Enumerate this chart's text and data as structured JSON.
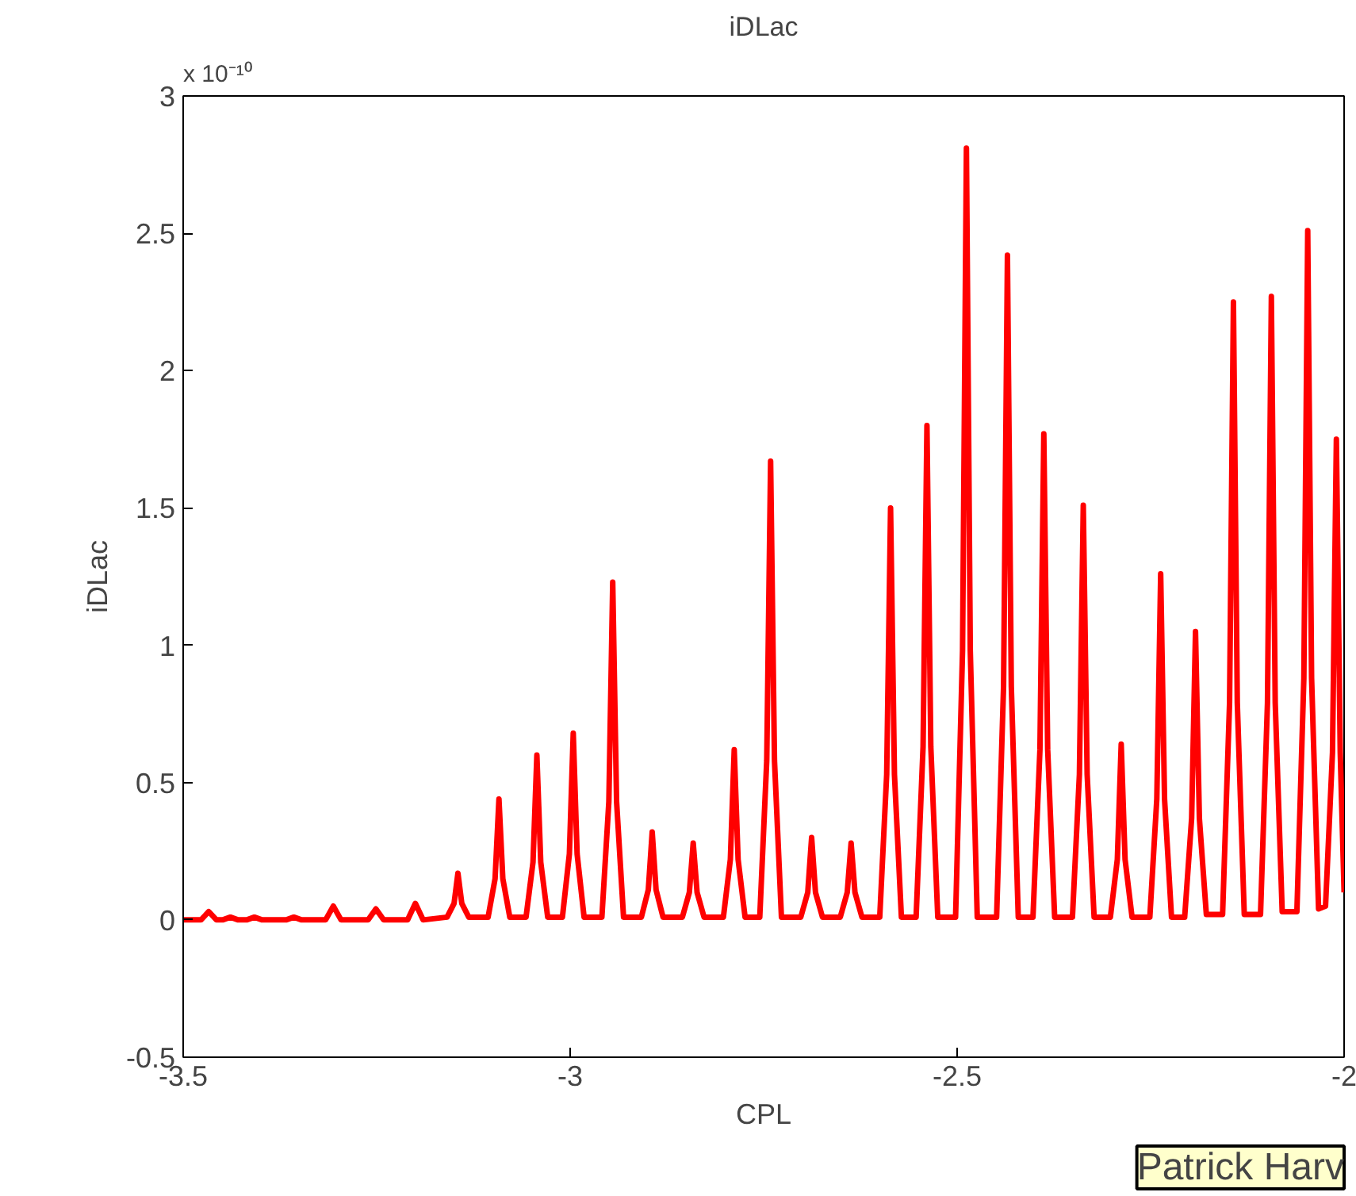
{
  "chart_data": {
    "type": "line",
    "title": "iDLac",
    "xlabel": "CPL",
    "ylabel": "iDLac",
    "annotations": [
      "x 10⁻¹⁰",
      "Patrick Harv"
    ],
    "xlim": [
      -3.5,
      -2
    ],
    "xticks": [
      -3.5,
      -3,
      -2.5,
      -2
    ],
    "ylim": [
      -0.5,
      3
    ],
    "yticks": [
      -0.5,
      0,
      0.5,
      1,
      1.5,
      2,
      2.5,
      3
    ],
    "grid": false,
    "series": [
      {
        "color": "#ff0000",
        "x": [
          -3.5,
          -3.477,
          -3.467,
          -3.457,
          -3.449,
          -3.439,
          -3.429,
          -3.418,
          -3.408,
          -3.398,
          -3.367,
          -3.357,
          -3.347,
          -3.316,
          -3.306,
          -3.296,
          -3.261,
          -3.251,
          -3.241,
          -3.21,
          -3.2,
          -3.19,
          -3.159,
          -3.15,
          -3.145,
          -3.14,
          -3.131,
          -3.106,
          -3.097,
          -3.092,
          -3.087,
          -3.078,
          -3.057,
          -3.048,
          -3.043,
          -3.038,
          -3.029,
          -3.01,
          -3.001,
          -2.996,
          -2.991,
          -2.982,
          -2.959,
          -2.95,
          -2.945,
          -2.94,
          -2.931,
          -2.908,
          -2.899,
          -2.894,
          -2.889,
          -2.88,
          -2.855,
          -2.846,
          -2.841,
          -2.836,
          -2.827,
          -2.802,
          -2.793,
          -2.788,
          -2.783,
          -2.774,
          -2.755,
          -2.746,
          -2.741,
          -2.736,
          -2.727,
          -2.702,
          -2.693,
          -2.688,
          -2.683,
          -2.674,
          -2.651,
          -2.642,
          -2.637,
          -2.632,
          -2.623,
          -2.6,
          -2.591,
          -2.586,
          -2.581,
          -2.572,
          -2.553,
          -2.544,
          -2.539,
          -2.534,
          -2.525,
          -2.502,
          -2.493,
          -2.488,
          -2.483,
          -2.474,
          -2.449,
          -2.44,
          -2.435,
          -2.43,
          -2.421,
          -2.402,
          -2.393,
          -2.388,
          -2.383,
          -2.374,
          -2.351,
          -2.342,
          -2.337,
          -2.332,
          -2.323,
          -2.302,
          -2.293,
          -2.288,
          -2.283,
          -2.274,
          -2.251,
          -2.242,
          -2.237,
          -2.232,
          -2.223,
          -2.206,
          -2.197,
          -2.192,
          -2.187,
          -2.178,
          -2.157,
          -2.148,
          -2.143,
          -2.138,
          -2.129,
          -2.108,
          -2.099,
          -2.094,
          -2.089,
          -2.08,
          -2.061,
          -2.052,
          -2.047,
          -2.042,
          -2.033,
          -2.024,
          -2.015,
          -2.01,
          -2.005,
          -2.0
        ],
        "values": [
          0,
          0,
          0.03,
          0,
          0,
          0.01,
          0,
          0,
          0.01,
          0,
          0,
          0.01,
          0,
          0,
          0.05,
          0,
          0,
          0.04,
          0,
          0,
          0.06,
          0,
          0.01,
          0.06,
          0.17,
          0.06,
          0.01,
          0.01,
          0.15,
          0.44,
          0.15,
          0.01,
          0.01,
          0.21,
          0.6,
          0.21,
          0.01,
          0.01,
          0.24,
          0.68,
          0.24,
          0.01,
          0.01,
          0.43,
          1.23,
          0.43,
          0.01,
          0.01,
          0.11,
          0.32,
          0.11,
          0.01,
          0.01,
          0.1,
          0.28,
          0.1,
          0.01,
          0.01,
          0.22,
          0.62,
          0.22,
          0.01,
          0.01,
          0.58,
          1.67,
          0.58,
          0.01,
          0.01,
          0.1,
          0.3,
          0.1,
          0.01,
          0.01,
          0.1,
          0.28,
          0.1,
          0.01,
          0.01,
          0.53,
          1.5,
          0.53,
          0.01,
          0.01,
          0.63,
          1.8,
          0.63,
          0.01,
          0.01,
          0.98,
          2.81,
          0.98,
          0.01,
          0.01,
          0.85,
          2.42,
          0.85,
          0.01,
          0.01,
          0.62,
          1.77,
          0.62,
          0.01,
          0.01,
          0.53,
          1.51,
          0.53,
          0.01,
          0.01,
          0.22,
          0.64,
          0.22,
          0.01,
          0.01,
          0.44,
          1.26,
          0.44,
          0.01,
          0.01,
          0.37,
          1.05,
          0.37,
          0.02,
          0.02,
          0.79,
          2.25,
          0.79,
          0.02,
          0.02,
          0.79,
          2.27,
          0.79,
          0.03,
          0.03,
          0.88,
          2.51,
          0.88,
          0.04,
          0.05,
          0.61,
          1.75,
          0.61,
          0.1
        ]
      }
    ]
  }
}
